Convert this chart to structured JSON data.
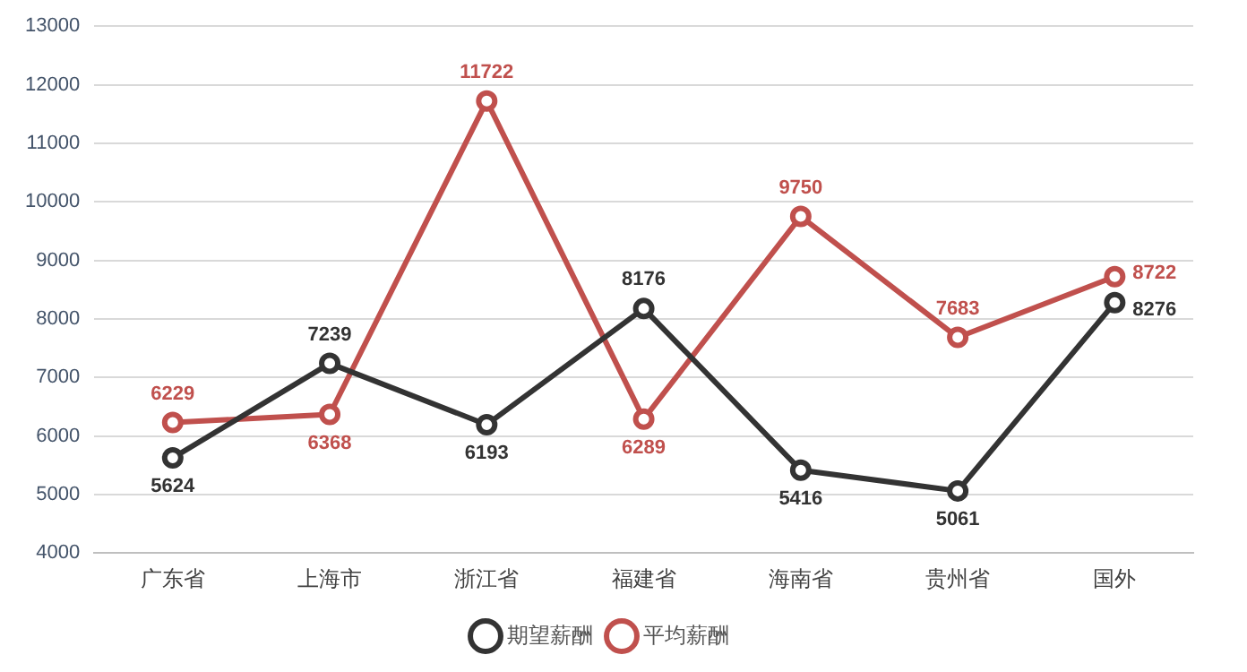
{
  "chart_data": {
    "type": "line",
    "categories": [
      "广东省",
      "上海市",
      "浙江省",
      "福建省",
      "海南省",
      "贵州省",
      "国外"
    ],
    "series": [
      {
        "name": "期望薪酬",
        "color": "#333333",
        "values": [
          5624,
          7239,
          6193,
          8176,
          5416,
          5061,
          8276
        ]
      },
      {
        "name": "平均薪酬",
        "color": "#c0504d",
        "values": [
          6229,
          6368,
          11722,
          6289,
          9750,
          7683,
          8722
        ]
      }
    ],
    "ylim": [
      4000,
      13000
    ],
    "yticks": [
      4000,
      5000,
      6000,
      7000,
      8000,
      9000,
      10000,
      11000,
      12000,
      13000
    ],
    "grid": "y",
    "legend": "bottom",
    "marker": "circle",
    "line_style": "solid",
    "data_labels": true
  }
}
